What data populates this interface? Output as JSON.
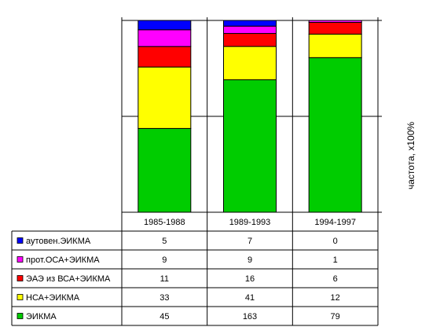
{
  "chart_data": {
    "type": "bar",
    "stacked": true,
    "normalized": true,
    "categories": [
      "1985-1988",
      "1989-1993",
      "1994-1997"
    ],
    "series": [
      {
        "name": "ЭИКМА",
        "color": "#00cc00",
        "values": [
          45,
          163,
          79
        ]
      },
      {
        "name": "НСА+ЭИКМА",
        "color": "#ffff00",
        "values": [
          33,
          41,
          12
        ]
      },
      {
        "name": "ЭАЭ из ВСА+ЭИКМА",
        "color": "#ff0000",
        "values": [
          11,
          16,
          6
        ]
      },
      {
        "name": "прот.ОСА+ЭИКМА",
        "color": "#ff00ff",
        "values": [
          9,
          9,
          1
        ]
      },
      {
        "name": "аутовен.ЭИКМА",
        "color": "#0000ff",
        "values": [
          5,
          7,
          0
        ]
      }
    ],
    "ylabel": "частота, x100%",
    "ylim": [
      0,
      1
    ],
    "grid": "horizontal",
    "legend": "data-table-bottom"
  }
}
